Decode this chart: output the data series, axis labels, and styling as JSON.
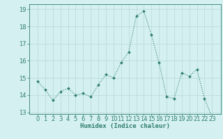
{
  "x": [
    0,
    1,
    2,
    3,
    4,
    5,
    6,
    7,
    8,
    9,
    10,
    11,
    12,
    13,
    14,
    15,
    16,
    17,
    18,
    19,
    20,
    21,
    22,
    23
  ],
  "y": [
    14.8,
    14.3,
    13.7,
    14.2,
    14.4,
    14.0,
    14.1,
    13.9,
    14.6,
    15.2,
    15.0,
    15.9,
    16.5,
    18.6,
    18.9,
    17.5,
    15.9,
    13.9,
    13.8,
    15.3,
    15.1,
    15.5,
    13.8,
    12.7
  ],
  "line_color": "#2e7d6e",
  "marker": "D",
  "marker_size": 2,
  "bg_color": "#d4f0f0",
  "grid_color": "#b8d8d8",
  "xlabel": "Humidex (Indice chaleur)",
  "ylim": [
    12.9,
    19.3
  ],
  "yticks": [
    13,
    14,
    15,
    16,
    17,
    18,
    19
  ],
  "xticks": [
    0,
    1,
    2,
    3,
    4,
    5,
    6,
    7,
    8,
    9,
    10,
    11,
    12,
    13,
    14,
    15,
    16,
    17,
    18,
    19,
    20,
    21,
    22,
    23
  ],
  "axes_color": "#2e7d6e",
  "tick_color": "#2e7d6e",
  "label_fontsize": 6.5,
  "tick_fontsize": 6
}
